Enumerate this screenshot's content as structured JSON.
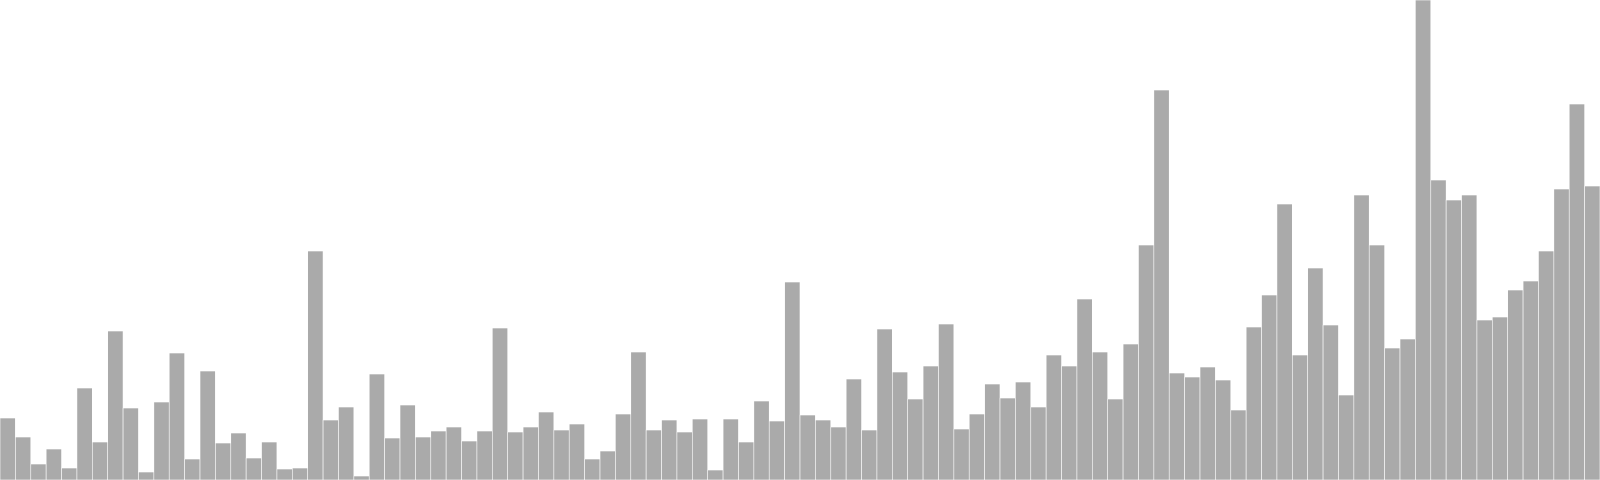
{
  "colors": {
    "bar_fill": "#aaaaaa",
    "bar_stroke": "#ffffff",
    "background": "#ffffff"
  },
  "chart_data": {
    "type": "bar",
    "title": "",
    "xlabel": "",
    "ylabel": "",
    "grid": false,
    "legend": "none",
    "ylim": [
      0,
      480
    ],
    "values": [
      62,
      43,
      16,
      31,
      12,
      92,
      38,
      149,
      72,
      8,
      78,
      127,
      21,
      109,
      37,
      47,
      22,
      38,
      11,
      12,
      229,
      60,
      73,
      4,
      106,
      42,
      75,
      43,
      49,
      53,
      39,
      49,
      152,
      48,
      53,
      68,
      50,
      56,
      21,
      29,
      66,
      128,
      50,
      60,
      48,
      61,
      10,
      61,
      38,
      79,
      59,
      198,
      65,
      60,
      53,
      101,
      50,
      151,
      108,
      81,
      114,
      156,
      51,
      66,
      96,
      82,
      98,
      73,
      125,
      114,
      181,
      128,
      81,
      136,
      235,
      390,
      107,
      103,
      113,
      100,
      70,
      153,
      185,
      276,
      125,
      212,
      155,
      85,
      285,
      235,
      132,
      141,
      480,
      300,
      280,
      285,
      160,
      163,
      190,
      199,
      229,
      291,
      376,
      294
    ]
  }
}
